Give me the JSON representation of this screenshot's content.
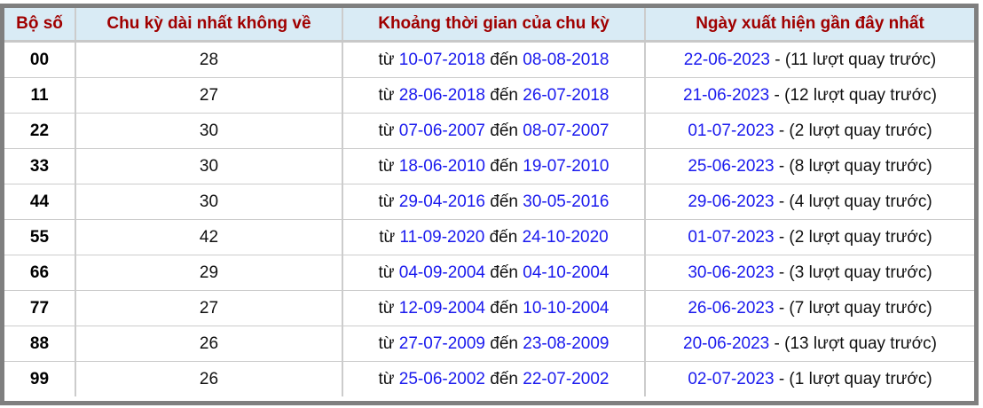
{
  "headers": [
    "Bộ số",
    "Chu kỳ dài nhất không về",
    "Khoảng thời gian của chu kỳ",
    "Ngày xuất hiện gần đây nhất"
  ],
  "words": {
    "from": "từ",
    "to": "đến"
  },
  "rows": [
    {
      "num": "00",
      "cycle": "28",
      "start": "10-07-2018",
      "end": "08-08-2018",
      "last": "22-06-2023",
      "note": " - (11 lượt quay trước)"
    },
    {
      "num": "11",
      "cycle": "27",
      "start": "28-06-2018",
      "end": "26-07-2018",
      "last": "21-06-2023",
      "note": " - (12 lượt quay trước)"
    },
    {
      "num": "22",
      "cycle": "30",
      "start": "07-06-2007",
      "end": "08-07-2007",
      "last": "01-07-2023",
      "note": " - (2 lượt quay trước)"
    },
    {
      "num": "33",
      "cycle": "30",
      "start": "18-06-2010",
      "end": "19-07-2010",
      "last": "25-06-2023",
      "note": " - (8 lượt quay trước)"
    },
    {
      "num": "44",
      "cycle": "30",
      "start": "29-04-2016",
      "end": "30-05-2016",
      "last": "29-06-2023",
      "note": " - (4 lượt quay trước)"
    },
    {
      "num": "55",
      "cycle": "42",
      "start": "11-09-2020",
      "end": "24-10-2020",
      "last": "01-07-2023",
      "note": " - (2 lượt quay trước)"
    },
    {
      "num": "66",
      "cycle": "29",
      "start": "04-09-2004",
      "end": "04-10-2004",
      "last": "30-06-2023",
      "note": " - (3 lượt quay trước)"
    },
    {
      "num": "77",
      "cycle": "27",
      "start": "12-09-2004",
      "end": "10-10-2004",
      "last": "26-06-2023",
      "note": " - (7 lượt quay trước)"
    },
    {
      "num": "88",
      "cycle": "26",
      "start": "27-07-2009",
      "end": "23-08-2009",
      "last": "20-06-2023",
      "note": " - (13 lượt quay trước)"
    },
    {
      "num": "99",
      "cycle": "26",
      "start": "25-06-2002",
      "end": "22-07-2002",
      "last": "02-07-2023",
      "note": " - (1 lượt quay trước)"
    }
  ],
  "colors": {
    "header_text": "#a00000",
    "header_bg": "#d9ebf5",
    "date": "#1a1aee",
    "frame": "#7f7f7f"
  }
}
